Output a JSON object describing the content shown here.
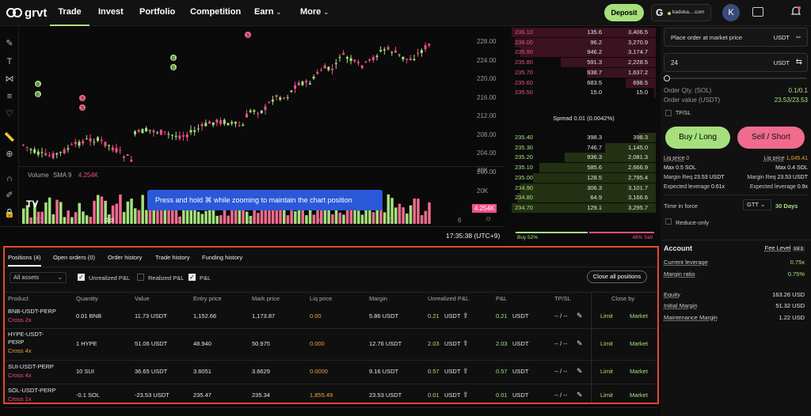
{
  "nav": {
    "logo": "grvt",
    "links": [
      "Trade",
      "Invest",
      "Portfolio",
      "Competition",
      "Earn",
      "More"
    ],
    "deposit": "Deposit",
    "account": "kadoka....com",
    "avatar": "K"
  },
  "chart": {
    "prices": [
      "228.00",
      "224.00",
      "220.00",
      "216.00",
      "212.00",
      "208.00",
      "204.00",
      "200.00"
    ],
    "vol_ticks": [
      "40K",
      "20K"
    ],
    "volume_label": "Volume",
    "sma_label": "SMA 9",
    "sma_value": "4.254K",
    "vol_badge": "4.254K",
    "x_ticks": [
      "30",
      "Oct",
      "2",
      "3",
      "4",
      "5",
      "6"
    ],
    "time": "17:35:38 (UTC+9)",
    "tooltip": "Press and hold ⌘ while zooming to maintain the chart position",
    "markers": [
      "B",
      "B",
      "B",
      "B",
      "S",
      "S",
      "S"
    ]
  },
  "orderbook": {
    "asks": [
      [
        "236.10",
        "135.6",
        "3,406.5"
      ],
      [
        "236.00",
        "96.2",
        "3,270.9"
      ],
      [
        "235.90",
        "946.2",
        "3,174.7"
      ],
      [
        "235.80",
        "591.3",
        "2,228.5"
      ],
      [
        "235.70",
        "938.7",
        "1,637.2"
      ],
      [
        "235.60",
        "683.5",
        "698.5"
      ],
      [
        "235.50",
        "15.0",
        "15.0"
      ]
    ],
    "ask_depth": [
      1,
      0.98,
      0.94,
      0.66,
      0.48,
      0.21,
      0.01
    ],
    "spread_label": "Spread",
    "spread": "0.01 (0.0042%)",
    "bids": [
      [
        "235.40",
        "398.3",
        "398.3"
      ],
      [
        "235.30",
        "746.7",
        "1,145.0"
      ],
      [
        "235.20",
        "936.3",
        "2,081.3"
      ],
      [
        "235.10",
        "585.6",
        "2,666.9"
      ],
      [
        "235.00",
        "128.5",
        "2,795.4"
      ],
      [
        "234.90",
        "306.3",
        "3,101.7"
      ],
      [
        "234.80",
        "64.9",
        "3,166.6"
      ],
      [
        "234.70",
        "129.1",
        "3,295.7"
      ]
    ],
    "bid_depth": [
      0.12,
      0.35,
      0.63,
      0.81,
      0.85,
      0.94,
      0.96,
      1
    ],
    "buy_pct": "Buy 52%",
    "sell_pct": "48% Sell",
    "buy_frac": 0.52
  },
  "order": {
    "market_placeholder": "Place order at market price",
    "unit": "USDT",
    "amount": "24",
    "qty_label": "Order Qty. (SOL)",
    "qty_val": "0.1/0.1",
    "value_label": "Order value (USDT)",
    "value_val": "23.53/23.53",
    "tpsl": "TP/SL",
    "buy": "Buy / Long",
    "sell": "Sell / Short",
    "liq_l": "Liq price",
    "liq_lv": "0",
    "liq_r": "Liq price",
    "liq_rv": "1,045.41",
    "max_l": "Max 0.5 SOL",
    "max_r": "Max 0.4 SOL",
    "mreq_l": "Margin Req",
    "mreq_lv": "23.53 USDT",
    "mreq_r": "Margin Req",
    "mreq_rv": "23.53 USDT",
    "lev_l": "Expected leverage",
    "lev_lv": "0.61x",
    "lev_r": "Expected leverage",
    "lev_rv": "0.9x",
    "tif": "Time in force",
    "gtt": "GTT",
    "days": "30 Days",
    "reduce": "Reduce-only"
  },
  "account": {
    "title": "Account",
    "fee": "Fee Level",
    "fee_lv": "LV.1",
    "cur_lev": "Current leverage",
    "cur_lev_v": "0.75x",
    "margin_ratio": "Margin ratio",
    "margin_ratio_v": "0.75%",
    "equity": "Equity",
    "equity_v": "163.26 USD",
    "init_margin": "Initial Margin",
    "init_margin_v": "51.32 USD",
    "maint": "Maintenance Margin",
    "maint_v": "1.22 USD"
  },
  "positions": {
    "tabs": [
      "Positions (4)",
      "Open orders (0)",
      "Order history",
      "Trade history",
      "Funding history"
    ],
    "filter": "All assets",
    "chk_unreal": "Unrealized P&L",
    "chk_real": "Realized P&L",
    "chk_pnl": "P&L",
    "close_all": "Close all positions",
    "headers": [
      "Product",
      "Quantity",
      "Value",
      "Entry price",
      "Mark price",
      "Liq price",
      "Margin",
      "Unrealized P&L",
      "P&L",
      "TP/SL",
      "Close by"
    ],
    "rows": [
      {
        "product": "BNB-USDT-PERP",
        "mode": "Cross 2x",
        "qty": "0.01 BNB",
        "value": "11.73 USDT",
        "entry": "1,152.66",
        "mark": "1,173.87",
        "liq": "0.00",
        "margin": "5.86 USDT",
        "upnl": "0.21",
        "pnl": "0.21",
        "unit": "USDT",
        "tpsl": "-- / --",
        "limit": "Limit",
        "market": "Market"
      },
      {
        "product": "HYPE-USDT-PERP",
        "mode": "Cross 4x",
        "qty": "1 HYPE",
        "value": "51.06 USDT",
        "entry": "48.940",
        "mark": "50.975",
        "liq": "0.000",
        "margin": "12.76 USDT",
        "upnl": "2.03",
        "pnl": "2.03",
        "unit": "USDT",
        "tpsl": "-- / --",
        "limit": "Limit",
        "market": "Market"
      },
      {
        "product": "SUI-USDT-PERP",
        "mode": "Cross 4x",
        "qty": "10 SUI",
        "value": "36.65 USDT",
        "entry": "3.6051",
        "mark": "3.6629",
        "liq": "0.0000",
        "margin": "9.16 USDT",
        "upnl": "0.57",
        "pnl": "0.57",
        "unit": "USDT",
        "tpsl": "-- / --",
        "limit": "Limit",
        "market": "Market"
      },
      {
        "product": "SOL-USDT-PERP",
        "mode": "Cross 1x",
        "qty": "-0.1 SOL",
        "value": "-23.53 USDT",
        "entry": "235.47",
        "mark": "235.34",
        "liq": "1,855.49",
        "margin": "23.53 USDT",
        "upnl": "0.01",
        "pnl": "0.01",
        "unit": "USDT",
        "tpsl": "-- / --",
        "limit": "Limit",
        "market": "Market"
      }
    ]
  },
  "colors": {
    "accent": "#a5e07d",
    "sell": "#f04e8c",
    "liq": "#f6a040"
  }
}
